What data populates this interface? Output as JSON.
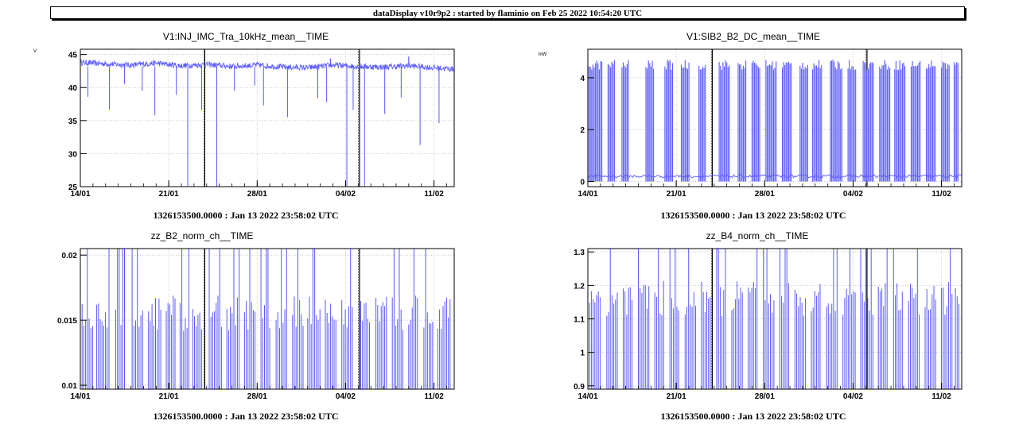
{
  "header": {
    "title": "dataDisplay v10r9p2 : started by flaminio on Feb 25 2022 10:54:20 UTC"
  },
  "colors": {
    "trace": "#5a5aff",
    "axis": "#000000",
    "grid": "#c8c8c8"
  },
  "chart_data": [
    {
      "type": "line",
      "title": "V1:INJ_IMC_Tra_10kHz_mean__TIME",
      "ylabel": "V",
      "xlabel": "1326153500.0000 : Jan 13 2022 23:58:02 UTC",
      "x_ticks": [
        "14/01",
        "21/01",
        "28/01",
        "04/02",
        "11/02"
      ],
      "y_ticks": [
        25,
        30,
        35,
        40,
        45
      ],
      "ylim": [
        25,
        45.8
      ],
      "xlim_days": [
        0,
        29.6
      ],
      "x_tick_days": [
        0,
        7,
        14,
        21,
        28
      ],
      "baseline": [
        [
          0,
          43.8
        ],
        [
          2,
          43.6
        ],
        [
          4,
          43.4
        ],
        [
          6,
          43.7
        ],
        [
          8,
          43.3
        ],
        [
          10,
          43.5
        ],
        [
          12,
          43.2
        ],
        [
          14,
          43.4
        ],
        [
          16,
          43.1
        ],
        [
          18,
          43.0
        ],
        [
          20,
          43.4
        ],
        [
          22,
          43.2
        ],
        [
          24,
          43.1
        ],
        [
          26,
          43.3
        ],
        [
          28,
          43.0
        ],
        [
          29.6,
          42.8
        ]
      ],
      "dips": [
        [
          0.6,
          38.6
        ],
        [
          2.3,
          36.7
        ],
        [
          3.5,
          40.5
        ],
        [
          4.9,
          39.5
        ],
        [
          5.9,
          35.8
        ],
        [
          7.6,
          38.9
        ],
        [
          8.5,
          25.0
        ],
        [
          9.6,
          36.6
        ],
        [
          10.8,
          25.0
        ],
        [
          12.2,
          39.5
        ],
        [
          13.8,
          40.3
        ],
        [
          14.5,
          37.3
        ],
        [
          16.4,
          35.5
        ],
        [
          18.8,
          38.4
        ],
        [
          19.5,
          37.8
        ],
        [
          21.1,
          25.0
        ],
        [
          21.6,
          36.6
        ],
        [
          22.5,
          25.0
        ],
        [
          24.1,
          36.0
        ],
        [
          25.4,
          38.5
        ],
        [
          26.9,
          31.3
        ],
        [
          28.4,
          34.6
        ]
      ],
      "spikes": [
        [
          19.8,
          44.4
        ],
        [
          26.0,
          44.7
        ]
      ],
      "gaps": [
        9.8,
        9.85,
        22.0,
        22.1
      ]
    },
    {
      "type": "line",
      "title": "V1:SIB2_B2_DC_mean__TIME",
      "ylabel": "mW",
      "xlabel": "1326153500.0000 : Jan 13 2022 23:58:02 UTC",
      "x_ticks": [
        "14/01",
        "21/01",
        "28/01",
        "04/02",
        "11/02"
      ],
      "y_ticks": [
        0,
        2,
        4
      ],
      "ylim": [
        -0.2,
        5.1
      ],
      "xlim_days": [
        0,
        29.6
      ],
      "x_tick_days": [
        0,
        7,
        14,
        21,
        28
      ],
      "baseline_level": 0.2,
      "high_level": 4.5,
      "bursts": [
        [
          0.0,
          1.2
        ],
        [
          1.6,
          2.2
        ],
        [
          2.7,
          3.3
        ],
        [
          4.6,
          5.3
        ],
        [
          6.1,
          6.8
        ],
        [
          7.4,
          8.1
        ],
        [
          8.8,
          9.4
        ],
        [
          10.4,
          11.3
        ],
        [
          11.9,
          12.6
        ],
        [
          13.0,
          13.7
        ],
        [
          14.1,
          15.0
        ],
        [
          15.4,
          16.2
        ],
        [
          16.8,
          17.5
        ],
        [
          17.8,
          18.6
        ],
        [
          19.2,
          20.2
        ],
        [
          20.6,
          21.3
        ],
        [
          21.8,
          22.7
        ],
        [
          23.1,
          24.0
        ],
        [
          24.3,
          25.2
        ],
        [
          25.6,
          26.4
        ],
        [
          26.8,
          27.6
        ],
        [
          28.0,
          28.7
        ],
        [
          29.0,
          29.4
        ]
      ],
      "gaps": [
        9.8,
        9.85,
        22.0,
        22.1
      ]
    },
    {
      "type": "line",
      "title": "zz_B2_norm_ch__TIME",
      "ylabel": "",
      "xlabel": "1326153500.0000 : Jan 13 2022 23:58:02 UTC",
      "x_ticks": [
        "14/01",
        "21/01",
        "28/01",
        "04/02",
        "11/02"
      ],
      "y_ticks": [
        0.01,
        0.015,
        0.02
      ],
      "y_tick_labels": [
        "0.01",
        "0.015",
        "0.02"
      ],
      "ylim": [
        0.0097,
        0.0205
      ],
      "xlim_days": [
        0,
        29.6
      ],
      "x_tick_days": [
        0,
        7,
        14,
        21,
        28
      ],
      "bursts": [
        [
          0.0,
          1.0
        ],
        [
          1.3,
          2.3
        ],
        [
          2.8,
          3.6
        ],
        [
          4.1,
          5.0
        ],
        [
          5.4,
          6.4
        ],
        [
          6.8,
          7.6
        ],
        [
          7.9,
          8.6
        ],
        [
          8.9,
          9.6
        ],
        [
          10.2,
          11.2
        ],
        [
          11.6,
          12.6
        ],
        [
          13.0,
          13.9
        ],
        [
          14.3,
          15.1
        ],
        [
          15.5,
          16.4
        ],
        [
          16.8,
          17.7
        ],
        [
          18.0,
          19.0
        ],
        [
          19.4,
          20.3
        ],
        [
          20.7,
          21.6
        ],
        [
          22.2,
          23.0
        ],
        [
          23.4,
          24.3
        ],
        [
          24.7,
          25.6
        ],
        [
          26.0,
          26.8
        ],
        [
          27.2,
          28.0
        ],
        [
          28.3,
          29.3
        ]
      ],
      "burst_top": 0.015,
      "gaps": [
        9.8,
        9.85,
        22.0,
        22.1
      ]
    },
    {
      "type": "line",
      "title": "zz_B4_norm_ch__TIME",
      "ylabel": "",
      "xlabel": "1326153500.0000 : Jan 13 2022 23:58:02 UTC",
      "x_ticks": [
        "14/01",
        "21/01",
        "28/01",
        "04/02",
        "11/02"
      ],
      "y_ticks": [
        0.9,
        1.0,
        1.1,
        1.2,
        1.3
      ],
      "y_tick_labels": [
        "0.9",
        "1",
        "1.1",
        "1.2",
        "1.3"
      ],
      "ylim": [
        0.89,
        1.31
      ],
      "xlim_days": [
        0,
        29.6
      ],
      "x_tick_days": [
        0,
        7,
        14,
        21,
        28
      ],
      "bursts": [
        [
          0.0,
          1.1
        ],
        [
          1.5,
          2.4
        ],
        [
          2.8,
          3.6
        ],
        [
          4.0,
          4.9
        ],
        [
          5.3,
          6.1
        ],
        [
          6.5,
          7.3
        ],
        [
          7.7,
          8.6
        ],
        [
          9.0,
          9.7
        ],
        [
          10.2,
          11.0
        ],
        [
          11.4,
          12.3
        ],
        [
          12.7,
          13.5
        ],
        [
          13.9,
          14.8
        ],
        [
          15.2,
          16.0
        ],
        [
          16.4,
          17.3
        ],
        [
          17.7,
          18.5
        ],
        [
          18.9,
          19.8
        ],
        [
          20.2,
          21.2
        ],
        [
          21.6,
          22.6
        ],
        [
          23.0,
          23.8
        ],
        [
          24.2,
          25.0
        ],
        [
          25.4,
          26.3
        ],
        [
          26.7,
          27.6
        ],
        [
          28.0,
          28.9
        ],
        [
          29.1,
          29.5
        ]
      ],
      "burst_top": 1.14,
      "gaps": [
        9.8,
        9.85,
        22.0,
        22.1
      ]
    }
  ]
}
